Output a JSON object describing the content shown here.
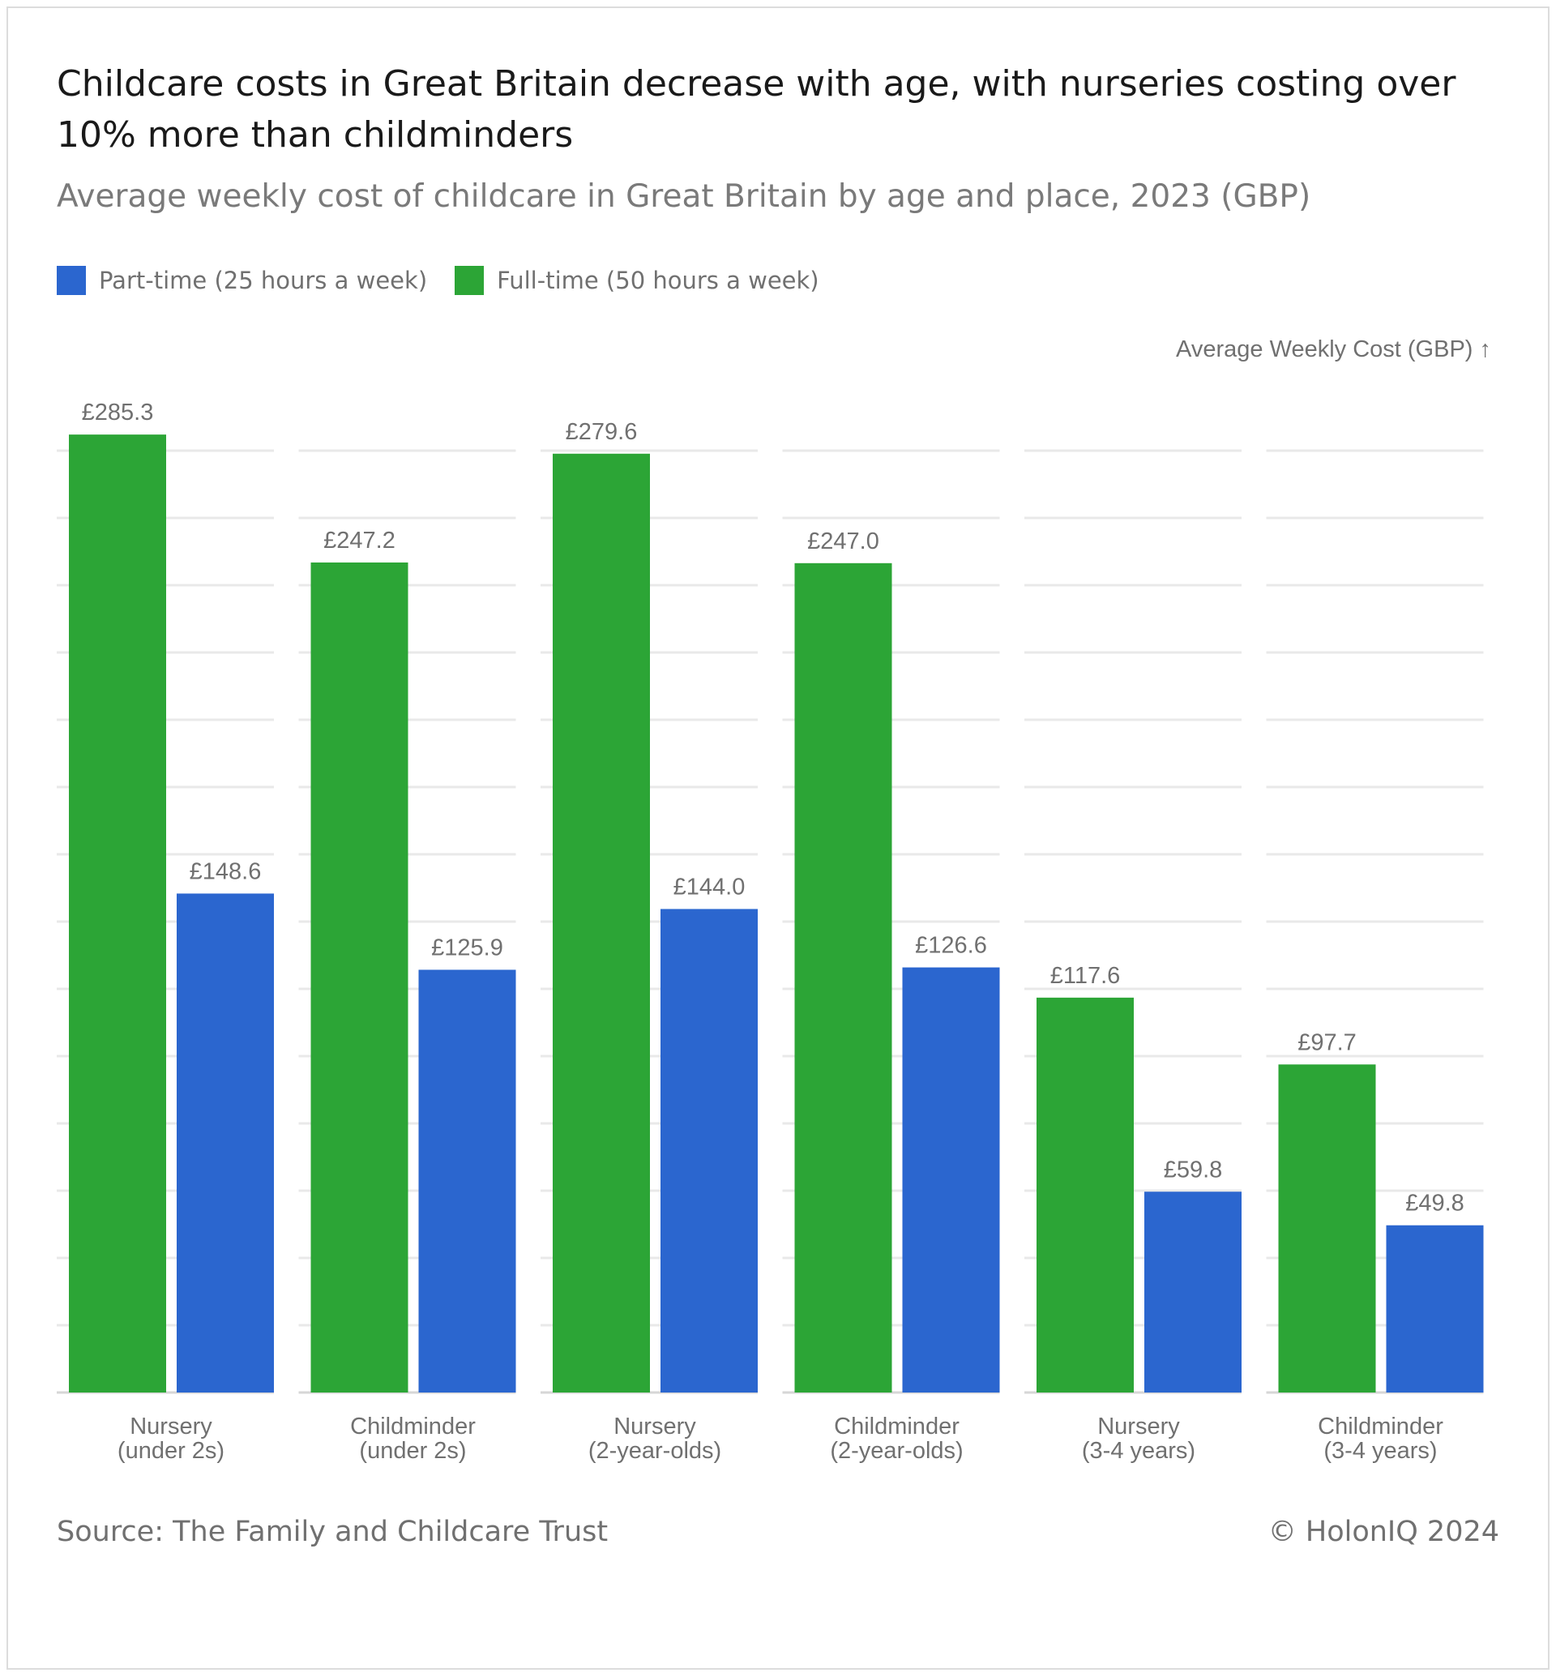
{
  "chart_data": {
    "type": "bar",
    "title": "Childcare costs in Great Britain decrease with age, with nurseries costing over 10% more than childminders",
    "subtitle": "Average weekly cost of childcare in Great Britain by age and place, 2023 (GBP)",
    "ylabel": "Average Weekly Cost (GBP) ↑",
    "ylim": [
      0,
      300
    ],
    "grid": true,
    "legend_position": "top-left",
    "categories": [
      [
        "Nursery",
        "(under 2s)"
      ],
      [
        "Childminder",
        "(under 2s)"
      ],
      [
        "Nursery",
        "(2-year-olds)"
      ],
      [
        "Childminder",
        "(2-year-olds)"
      ],
      [
        "Nursery",
        "(3-4 years)"
      ],
      [
        "Childminder",
        "(3-4 years)"
      ]
    ],
    "series": [
      {
        "name": "Full-time (50 hours a week)",
        "color": "#2ca536",
        "values": [
          285.3,
          247.2,
          279.6,
          247.0,
          117.6,
          97.7
        ],
        "labels": [
          "£285.3",
          "£247.2",
          "£279.6",
          "£247.0",
          "£117.6",
          "£97.7"
        ]
      },
      {
        "name": "Part-time (25 hours a week)",
        "color": "#2b66cf",
        "values": [
          148.6,
          125.9,
          144.0,
          126.6,
          59.8,
          49.8
        ],
        "labels": [
          "£148.6",
          "£125.9",
          "£144.0",
          "£126.6",
          "£59.8",
          "£49.8"
        ]
      }
    ]
  },
  "legend": [
    {
      "label": "Part-time (25 hours a week)",
      "color": "#2b66cf"
    },
    {
      "label": "Full-time (50 hours a week)",
      "color": "#2ca536"
    }
  ],
  "footer": {
    "source": "Source: The Family and Childcare Trust",
    "copyright": "© HolonIQ 2024"
  }
}
